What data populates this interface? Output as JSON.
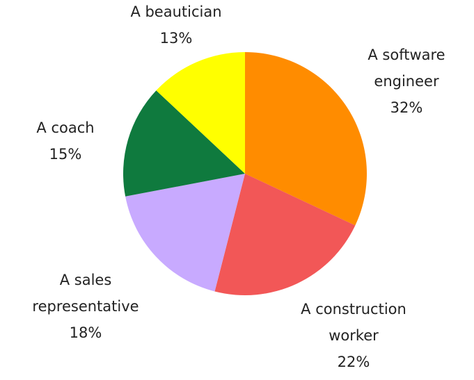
{
  "chart_data": {
    "type": "pie",
    "title": "",
    "start_angle_deg": 0,
    "direction": "clockwise",
    "legend": "none",
    "slices": [
      {
        "label_lines": [
          "A software",
          "engineer"
        ],
        "value": 32,
        "value_label": "32%",
        "color": "#ff8c00"
      },
      {
        "label_lines": [
          "A construction",
          "worker"
        ],
        "value": 22,
        "value_label": "22%",
        "color": "#f25757"
      },
      {
        "label_lines": [
          "A sales",
          "representative"
        ],
        "value": 18,
        "value_label": "18%",
        "color": "#c8aaff"
      },
      {
        "label_lines": [
          "A coach"
        ],
        "value": 15,
        "value_label": "15%",
        "color": "#0f7a3e"
      },
      {
        "label_lines": [
          "A beautician"
        ],
        "value": 13,
        "value_label": "13%",
        "color": "#ffff00"
      }
    ]
  }
}
